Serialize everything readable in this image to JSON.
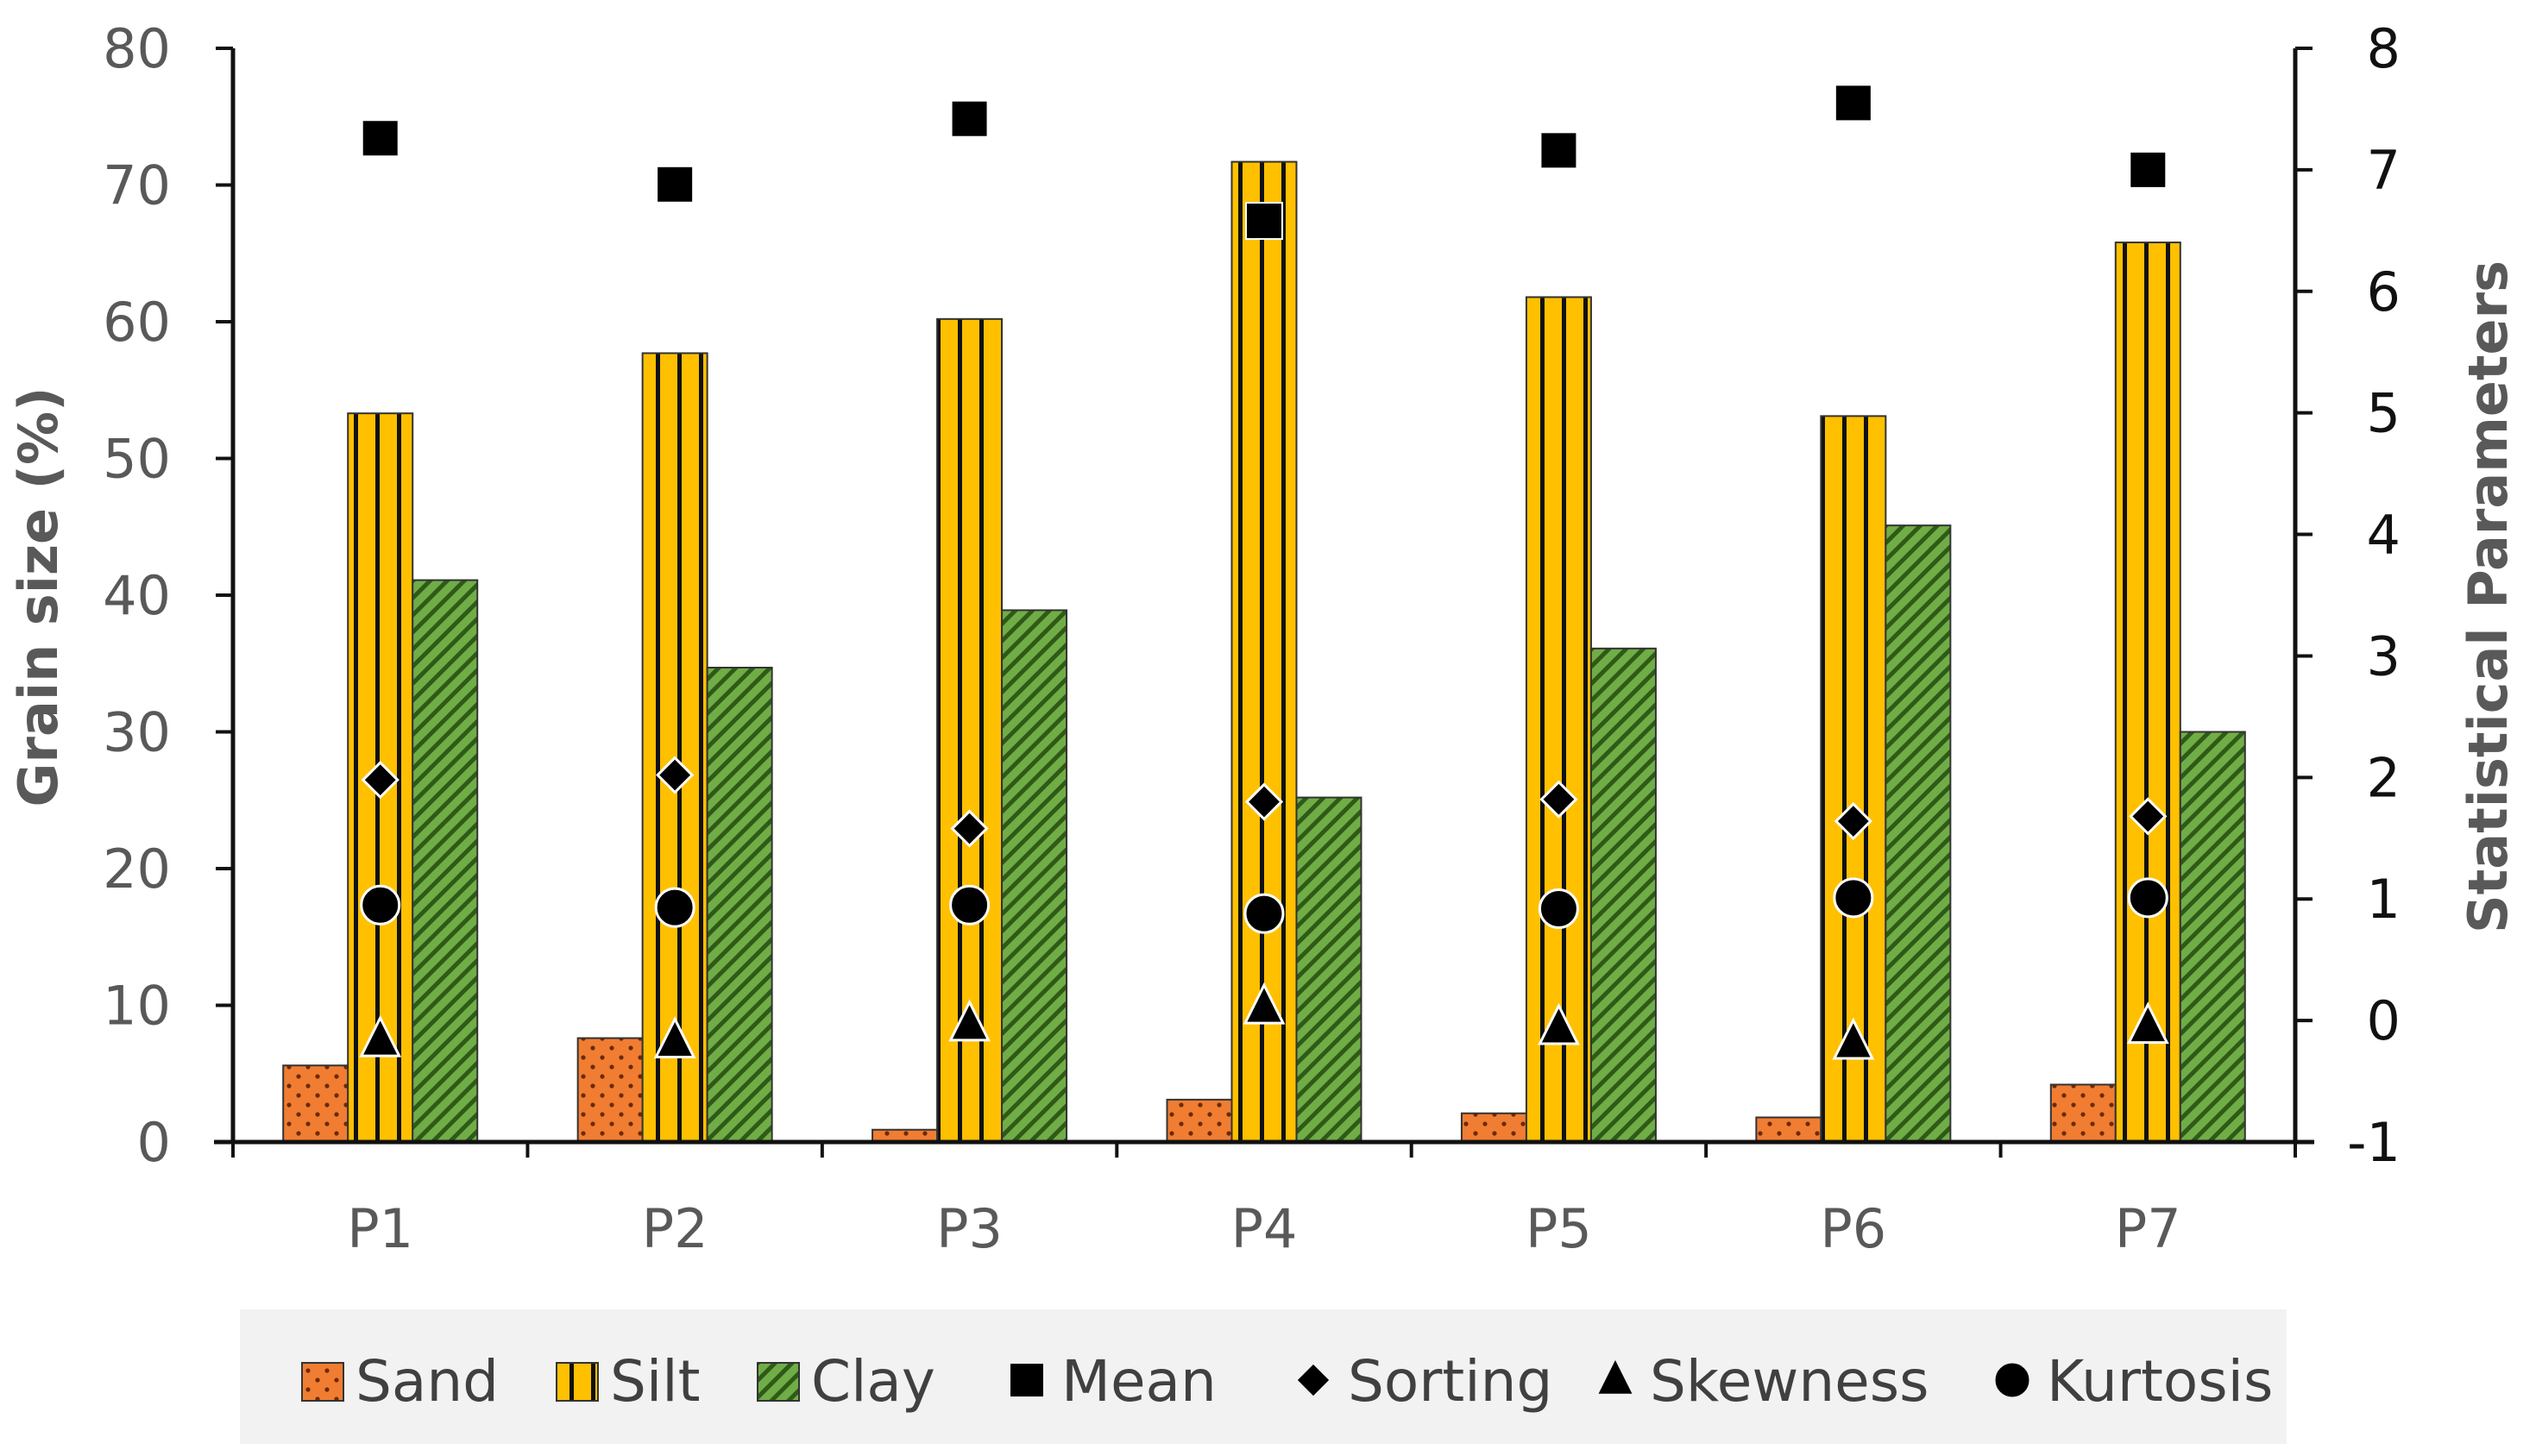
{
  "chart_data": {
    "type": "bar",
    "categories": [
      "P1",
      "P2",
      "P3",
      "P4",
      "P5",
      "P6",
      "P7"
    ],
    "y_left": {
      "label": "Grain size (%)",
      "lim": [
        0,
        80
      ],
      "ticks": [
        0,
        10,
        20,
        30,
        40,
        50,
        60,
        70,
        80
      ]
    },
    "y_right": {
      "label": "Statistical Parameters",
      "lim": [
        -1,
        8
      ],
      "ticks": [
        -1,
        0,
        1,
        2,
        3,
        4,
        5,
        6,
        7,
        8
      ]
    },
    "bar_series": [
      {
        "name": "Sand",
        "axis": "left",
        "color": "#F07D32",
        "pattern": "dots",
        "values": [
          5.6,
          7.6,
          0.9,
          3.1,
          2.1,
          1.8,
          4.2
        ]
      },
      {
        "name": "Silt",
        "axis": "left",
        "color": "#FFC000",
        "pattern": "vertical-lines",
        "values": [
          53.3,
          57.7,
          60.2,
          71.7,
          61.8,
          53.1,
          65.8
        ]
      },
      {
        "name": "Clay",
        "axis": "left",
        "color": "#70AD47",
        "pattern": "diagonal-lines",
        "values": [
          41.1,
          34.7,
          38.9,
          25.2,
          36.1,
          45.1,
          30.0
        ]
      }
    ],
    "marker_series": [
      {
        "name": "Mean",
        "axis": "right",
        "marker": "square",
        "values": [
          7.26,
          6.88,
          7.42,
          6.58,
          7.16,
          7.55,
          7.0
        ]
      },
      {
        "name": "Sorting",
        "axis": "right",
        "marker": "diamond",
        "values": [
          1.98,
          2.02,
          1.58,
          1.8,
          1.82,
          1.64,
          1.68
        ]
      },
      {
        "name": "Skewness",
        "axis": "right",
        "marker": "triangle",
        "values": [
          -0.16,
          -0.17,
          -0.03,
          0.11,
          -0.06,
          -0.18,
          -0.05
        ]
      },
      {
        "name": "Kurtosis",
        "axis": "right",
        "marker": "circle",
        "values": [
          0.95,
          0.93,
          0.95,
          0.88,
          0.92,
          1.01,
          1.01
        ]
      }
    ],
    "legend": {
      "position": "bottom",
      "items": [
        "Sand",
        "Silt",
        "Clay",
        "Mean",
        "Sorting",
        "Skewness",
        "Kurtosis"
      ]
    }
  }
}
